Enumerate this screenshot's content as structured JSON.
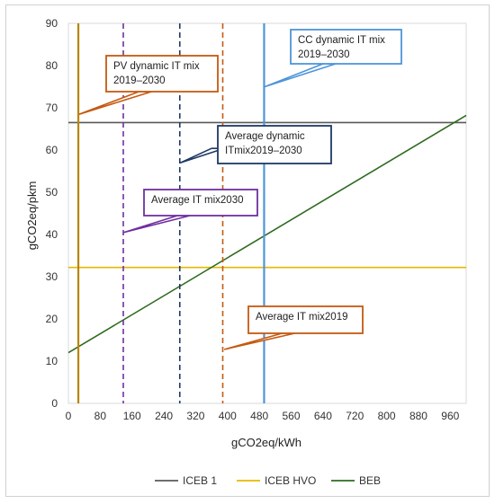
{
  "chart_data": {
    "type": "line",
    "xlabel": "gCO2eq/kWh",
    "ylabel": "gCO2eq/pkm",
    "xlim": [
      0,
      1000
    ],
    "ylim": [
      0,
      90
    ],
    "x_ticks": [
      0,
      80,
      160,
      240,
      320,
      400,
      480,
      560,
      640,
      720,
      800,
      880,
      960
    ],
    "y_ticks": [
      0,
      10,
      20,
      30,
      40,
      50,
      60,
      70,
      80,
      90
    ],
    "grid": false,
    "legend_position": "bottom",
    "series": [
      {
        "name": "ICEB 1",
        "color": "#595959",
        "points": [
          [
            0,
            66.5
          ],
          [
            1000,
            66.5
          ]
        ]
      },
      {
        "name": "ICEB HVO",
        "color": "#e6b800",
        "points": [
          [
            0,
            32.2
          ],
          [
            1000,
            32.2
          ]
        ]
      },
      {
        "name": "BEB",
        "color": "#2e6b1f",
        "points": [
          [
            0,
            12
          ],
          [
            1000,
            68.2
          ]
        ]
      }
    ],
    "vertical_markers": [
      {
        "x": 25,
        "color": "#b8860b",
        "style": "solid"
      },
      {
        "x": 138,
        "color": "#7030a0",
        "style": "dashed"
      },
      {
        "x": 280,
        "color": "#1f3864",
        "style": "dashed"
      },
      {
        "x": 388,
        "color": "#c55a11",
        "style": "dashed"
      },
      {
        "x": 492,
        "color": "#4e95d9",
        "style": "solid"
      }
    ],
    "callouts": [
      {
        "text": [
          "CC  dynamic IT mix",
          "2019–2030"
        ],
        "border": "#4e95d9",
        "anchor": [
          494,
          75
        ]
      },
      {
        "text": [
          "PV dynamic IT mix",
          "2019–2030"
        ],
        "border": "#c55a11",
        "anchor": [
          28,
          68.5
        ]
      },
      {
        "text": [
          "Average dynamic",
          "ITmix2019–2030"
        ],
        "border": "#1f3864",
        "anchor": [
          282,
          57
        ]
      },
      {
        "text": [
          "Average IT mix2030"
        ],
        "border": "#7030a0",
        "anchor": [
          140,
          40.5
        ]
      },
      {
        "text": [
          "Average IT mix2019"
        ],
        "border": "#c55a11",
        "anchor": [
          393,
          12.8
        ]
      }
    ]
  }
}
